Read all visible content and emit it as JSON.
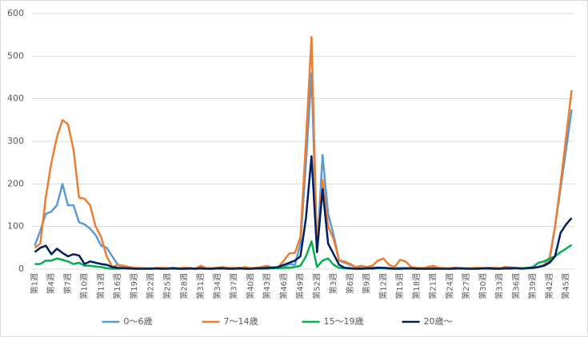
{
  "chart_data": {
    "type": "line",
    "categories": [
      "第1週",
      null,
      null,
      "第4週",
      null,
      null,
      "第7週",
      null,
      null,
      "第10週",
      null,
      null,
      "第13週",
      null,
      null,
      "第16週",
      null,
      null,
      "第19週",
      null,
      null,
      "第22週",
      null,
      null,
      "第25週",
      null,
      null,
      "第28週",
      null,
      null,
      "第31週",
      null,
      null,
      "第34週",
      null,
      null,
      "第37週",
      null,
      null,
      "第40週",
      null,
      null,
      "第43週",
      null,
      null,
      "第46週",
      null,
      null,
      "第49週",
      null,
      null,
      "第52週",
      null,
      null,
      "第3週",
      null,
      null,
      "第6週",
      null,
      null,
      "第9週",
      null,
      null,
      "第12週",
      null,
      null,
      "第15週",
      null,
      null,
      "第18週",
      null,
      null,
      "第21週",
      null,
      null,
      "第24週",
      null,
      null,
      "第27週",
      null,
      null,
      "第30週",
      null,
      null,
      "第33週",
      null,
      null,
      "第36週",
      null,
      null,
      "第39週",
      null,
      null,
      "第42週",
      null,
      null,
      "第45週",
      null
    ],
    "series": [
      {
        "name": "0～6歳",
        "color": "#5b9bd5",
        "values": [
          55,
          90,
          130,
          135,
          150,
          200,
          150,
          150,
          110,
          105,
          95,
          80,
          55,
          50,
          30,
          10,
          5,
          5,
          3,
          2,
          2,
          2,
          1,
          1,
          2,
          3,
          2,
          1,
          1,
          2,
          3,
          2,
          1,
          2,
          4,
          3,
          2,
          3,
          2,
          1,
          2,
          3,
          4,
          5,
          2,
          5,
          12,
          10,
          60,
          250,
          460,
          40,
          268,
          130,
          80,
          20,
          15,
          10,
          5,
          3,
          2,
          3,
          4,
          3,
          2,
          2,
          3,
          2,
          2,
          1,
          2,
          2,
          3,
          2,
          2,
          1,
          1,
          2,
          2,
          1,
          2,
          2,
          3,
          3,
          2,
          5,
          4,
          3,
          2,
          2,
          3,
          5,
          8,
          20,
          100,
          190,
          280,
          375
        ]
      },
      {
        "name": "7～14歳",
        "color": "#ed7d31",
        "values": [
          50,
          60,
          170,
          250,
          310,
          350,
          340,
          280,
          168,
          165,
          150,
          100,
          75,
          30,
          5,
          10,
          8,
          5,
          3,
          2,
          2,
          1,
          2,
          3,
          2,
          1,
          2,
          3,
          2,
          1,
          8,
          2,
          2,
          3,
          5,
          2,
          3,
          2,
          5,
          2,
          3,
          5,
          8,
          3,
          5,
          20,
          37,
          38,
          75,
          300,
          545,
          40,
          210,
          100,
          70,
          20,
          18,
          12,
          5,
          8,
          5,
          8,
          20,
          25,
          10,
          5,
          22,
          18,
          5,
          3,
          2,
          5,
          8,
          3,
          2,
          2,
          3,
          1,
          2,
          2,
          3,
          2,
          2,
          3,
          2,
          4,
          2,
          3,
          2,
          3,
          3,
          5,
          10,
          25,
          100,
          200,
          310,
          420
        ]
      },
      {
        "name": "15～19歳",
        "color": "#00b050",
        "values": [
          12,
          12,
          20,
          20,
          25,
          22,
          18,
          12,
          15,
          8,
          8,
          6,
          5,
          2,
          1,
          1,
          2,
          1,
          1,
          1,
          1,
          1,
          1,
          1,
          1,
          1,
          1,
          1,
          1,
          1,
          1,
          1,
          1,
          1,
          1,
          1,
          1,
          1,
          1,
          1,
          1,
          1,
          1,
          2,
          2,
          3,
          3,
          5,
          8,
          30,
          65,
          5,
          20,
          25,
          10,
          3,
          2,
          1,
          1,
          1,
          1,
          1,
          2,
          2,
          1,
          1,
          1,
          1,
          1,
          1,
          1,
          1,
          1,
          1,
          1,
          1,
          1,
          1,
          1,
          1,
          1,
          1,
          1,
          1,
          1,
          1,
          1,
          2,
          2,
          3,
          5,
          15,
          18,
          25,
          30,
          40,
          48,
          57
        ]
      },
      {
        "name": "20歳～",
        "color": "#002060",
        "values": [
          40,
          50,
          55,
          35,
          48,
          38,
          30,
          35,
          32,
          12,
          18,
          15,
          12,
          10,
          5,
          3,
          2,
          2,
          1,
          1,
          1,
          1,
          2,
          1,
          1,
          2,
          1,
          1,
          2,
          1,
          2,
          1,
          1,
          2,
          2,
          1,
          1,
          2,
          1,
          1,
          2,
          2,
          3,
          3,
          5,
          10,
          15,
          20,
          30,
          120,
          265,
          40,
          188,
          60,
          35,
          10,
          3,
          2,
          1,
          1,
          2,
          2,
          3,
          3,
          2,
          1,
          1,
          2,
          2,
          1,
          1,
          1,
          1,
          1,
          1,
          1,
          2,
          2,
          1,
          1,
          1,
          2,
          2,
          1,
          1,
          2,
          2,
          2,
          1,
          2,
          3,
          5,
          8,
          15,
          30,
          85,
          105,
          120
        ]
      }
    ],
    "ylim": [
      0,
      600
    ],
    "yticks": [
      0,
      100,
      200,
      300,
      400,
      500,
      600
    ],
    "grid": true,
    "legend": "bottom"
  }
}
